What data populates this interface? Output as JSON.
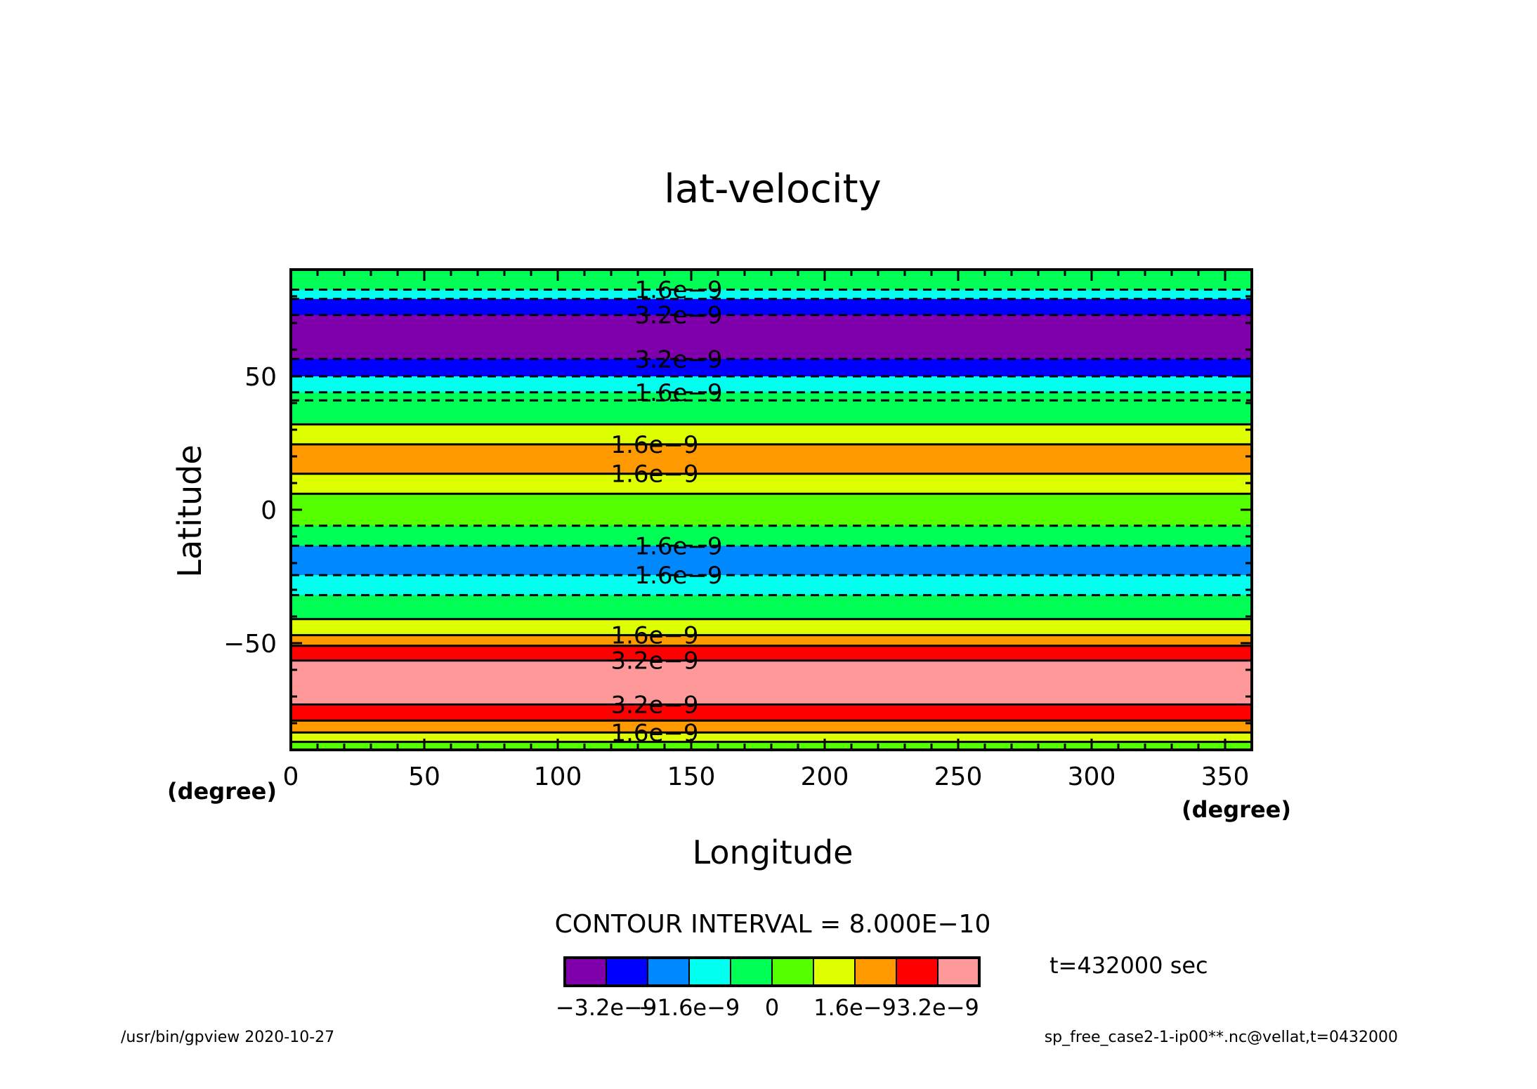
{
  "chart_data": {
    "type": "heatmap",
    "title": "lat-velocity",
    "xlabel": "Longitude",
    "ylabel": "Latitude",
    "x_unit": "(degree)",
    "y_unit": "(degree)",
    "xlim": [
      0,
      360
    ],
    "ylim": [
      -90,
      90
    ],
    "x_ticks": [
      "0",
      "50",
      "100",
      "150",
      "200",
      "250",
      "300",
      "350"
    ],
    "y_ticks": [
      "50",
      "0",
      "−50"
    ],
    "contour_interval_text": "CONTOUR INTERVAL = 8.000E−10",
    "time_text": "t=432000 sec",
    "footer_left": "/usr/bin/gpview   2020-10-27",
    "footer_right": "sp_free_case2-1-ip00**.nc@vellat,t=0432000",
    "levels": [
      -4e-09,
      -3.2e-09,
      -2.4e-09,
      -1.6e-09,
      -8e-10,
      0,
      8e-10,
      1.6e-09,
      2.4e-09,
      3.2e-09,
      4e-09
    ],
    "colorbar_colors": [
      "#7f00aa",
      "#0000ff",
      "#0088ff",
      "#00ffee",
      "#00ff55",
      "#55ff00",
      "#ddff00",
      "#ff9900",
      "#ff0000",
      "#ff9999"
    ],
    "colorbar_tick_labels": [
      "−3.2e−9",
      "−1.6e−9",
      "0",
      "1.6e−9",
      "3.2e−9"
    ],
    "bands": [
      {
        "lat_from": 82.5,
        "lat_to": 90,
        "color": "#00ff55"
      },
      {
        "lat_from": 79,
        "lat_to": 82.5,
        "color": "#00ffee"
      },
      {
        "lat_from": 73,
        "lat_to": 79,
        "color": "#0000ff"
      },
      {
        "lat_from": 56.5,
        "lat_to": 73,
        "color": "#7f00aa"
      },
      {
        "lat_from": 50,
        "lat_to": 56.5,
        "color": "#0000ff"
      },
      {
        "lat_from": 44,
        "lat_to": 50,
        "color": "#00ffee"
      },
      {
        "lat_from": 32,
        "lat_to": 44,
        "color": "#00ff55"
      },
      {
        "lat_from": 24.5,
        "lat_to": 32,
        "color": "#ddff00"
      },
      {
        "lat_from": 13.5,
        "lat_to": 24.5,
        "color": "#ff9900"
      },
      {
        "lat_from": 6,
        "lat_to": 13.5,
        "color": "#ddff00"
      },
      {
        "lat_from": -6,
        "lat_to": 6,
        "color": "#55ff00"
      },
      {
        "lat_from": -13.5,
        "lat_to": -6,
        "color": "#00ff55"
      },
      {
        "lat_from": -24.5,
        "lat_to": -13.5,
        "color": "#0088ff"
      },
      {
        "lat_from": -32,
        "lat_to": -24.5,
        "color": "#00ffee"
      },
      {
        "lat_from": -41,
        "lat_to": -32,
        "color": "#00ff55"
      },
      {
        "lat_from": -47,
        "lat_to": -41,
        "color": "#ddff00"
      },
      {
        "lat_from": -51,
        "lat_to": -47,
        "color": "#ff9900"
      },
      {
        "lat_from": -56.5,
        "lat_to": -51,
        "color": "#ff0000"
      },
      {
        "lat_from": -73,
        "lat_to": -56.5,
        "color": "#ff9999"
      },
      {
        "lat_from": -79,
        "lat_to": -73,
        "color": "#ff0000"
      },
      {
        "lat_from": -83.5,
        "lat_to": -79,
        "color": "#ff9900"
      },
      {
        "lat_from": -87,
        "lat_to": -83.5,
        "color": "#ddff00"
      },
      {
        "lat_from": -90,
        "lat_to": -87,
        "color": "#55ff00"
      }
    ],
    "contours": [
      {
        "lat": 82.5,
        "dashed": true,
        "label": "1.6e−9"
      },
      {
        "lat": 79,
        "dashed": true,
        "label": ""
      },
      {
        "lat": 73,
        "dashed": true,
        "label": "3.2e−9"
      },
      {
        "lat": 56.5,
        "dashed": true,
        "label": "3.2e−9"
      },
      {
        "lat": 50,
        "dashed": true,
        "label": ""
      },
      {
        "lat": 44,
        "dashed": true,
        "label": "1.6e−9"
      },
      {
        "lat": 41,
        "dashed": true,
        "label": ""
      },
      {
        "lat": 32,
        "dashed": false,
        "label": ""
      },
      {
        "lat": 24.5,
        "dashed": false,
        "label": "1.6e−9"
      },
      {
        "lat": 13.5,
        "dashed": false,
        "label": "1.6e−9"
      },
      {
        "lat": 6,
        "dashed": false,
        "label": ""
      },
      {
        "lat": -6,
        "dashed": true,
        "label": ""
      },
      {
        "lat": -13.5,
        "dashed": true,
        "label": "1.6e−9"
      },
      {
        "lat": -24.5,
        "dashed": true,
        "label": "1.6e−9"
      },
      {
        "lat": -32,
        "dashed": true,
        "label": ""
      },
      {
        "lat": -41,
        "dashed": false,
        "label": ""
      },
      {
        "lat": -47,
        "dashed": false,
        "label": "1.6e−9"
      },
      {
        "lat": -51,
        "dashed": false,
        "label": ""
      },
      {
        "lat": -56.5,
        "dashed": false,
        "label": "3.2e−9"
      },
      {
        "lat": -73,
        "dashed": false,
        "label": "3.2e−9"
      },
      {
        "lat": -79,
        "dashed": false,
        "label": ""
      },
      {
        "lat": -83.5,
        "dashed": false,
        "label": "1.6e−9"
      },
      {
        "lat": -87,
        "dashed": false,
        "label": ""
      }
    ]
  }
}
